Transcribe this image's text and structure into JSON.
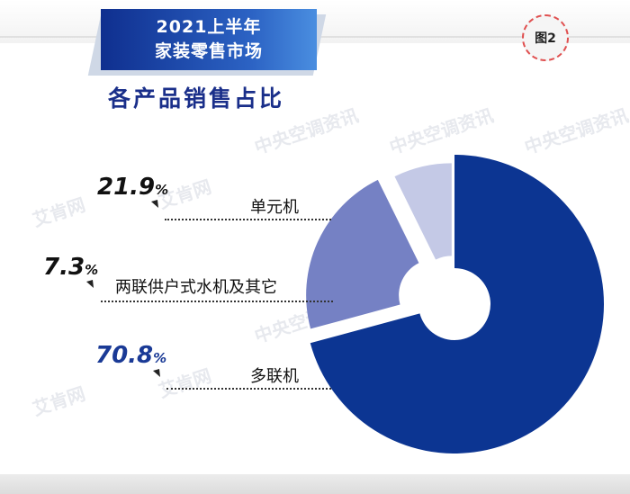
{
  "header": {
    "title_line1": "2021上半年",
    "title_line2": "家装零售市场",
    "subtitle": "各产品销售占比",
    "figure_badge": "图2"
  },
  "watermarks": [
    "中央空调资讯",
    "艾肯网",
    "中央空调资讯",
    "艾肯网",
    "中央空调资讯",
    "艾肯网",
    "中央空调资讯",
    "艾肯网"
  ],
  "chart_data": {
    "type": "pie",
    "title": "各产品销售占比",
    "categories": [
      "单元机",
      "两联供户式水机及其它",
      "多联机"
    ],
    "values": [
      21.9,
      7.3,
      70.8
    ],
    "labels": [
      {
        "value": "21.9",
        "unit": "%",
        "category": "单元机"
      },
      {
        "value": "7.3",
        "unit": "%",
        "category": "两联供户式水机及其它"
      },
      {
        "value": "70.8",
        "unit": "%",
        "category": "多联机"
      }
    ],
    "colors": [
      "#7581c4",
      "#c4c9e6",
      "#0c3592"
    ],
    "donut": true,
    "legend": "none"
  }
}
